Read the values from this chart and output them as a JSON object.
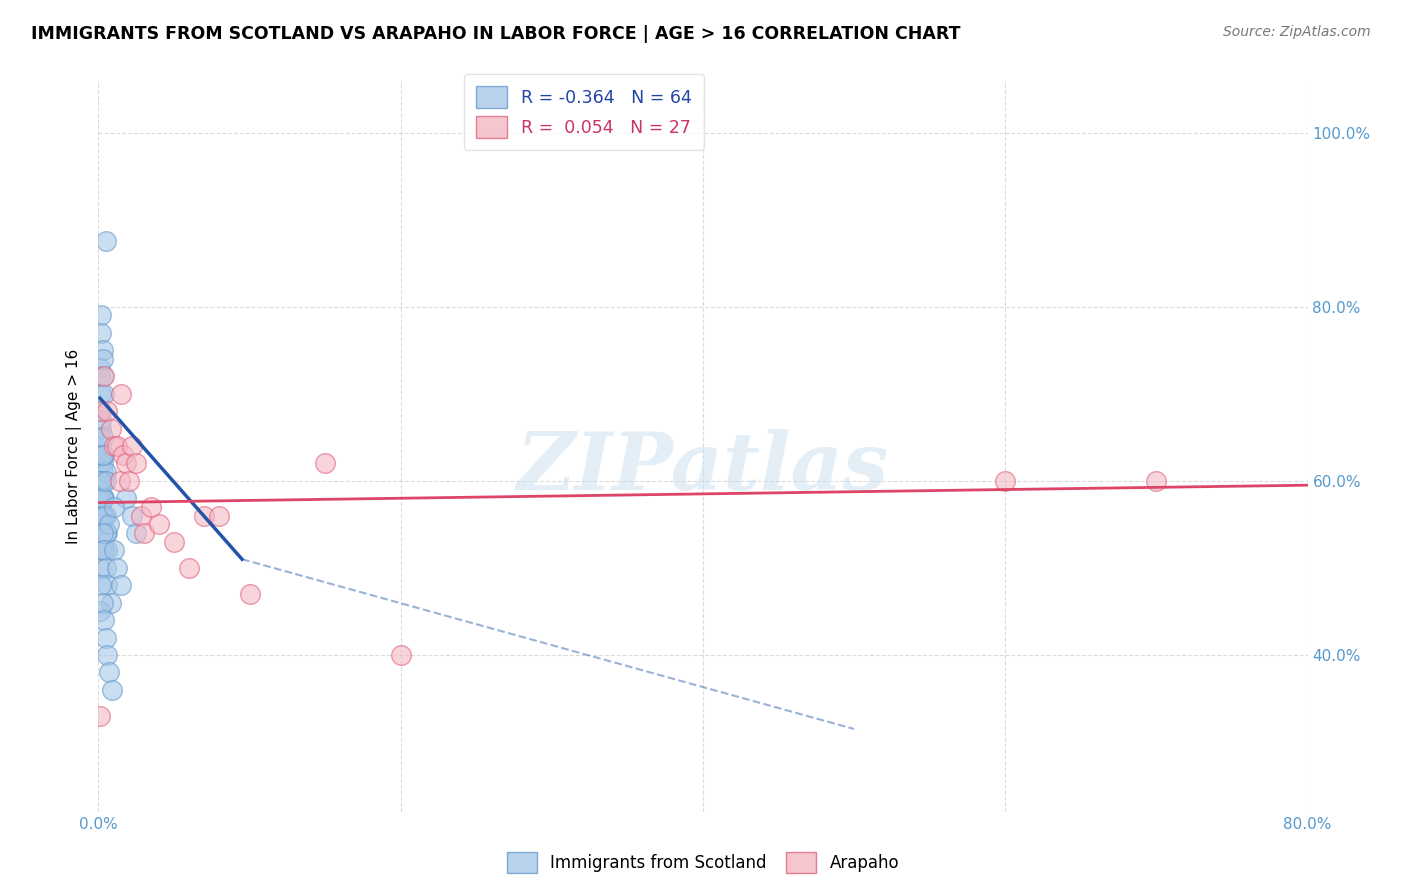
{
  "title": "IMMIGRANTS FROM SCOTLAND VS ARAPAHO IN LABOR FORCE | AGE > 16 CORRELATION CHART",
  "source": "Source: ZipAtlas.com",
  "ylabel": "In Labor Force | Age > 16",
  "xlim": [
    0.0,
    0.8
  ],
  "ylim": [
    0.22,
    1.06
  ],
  "xticks": [
    0.0,
    0.2,
    0.4,
    0.6,
    0.8
  ],
  "xticklabels": [
    "0.0%",
    "",
    "",
    "",
    "80.0%"
  ],
  "yticks": [
    0.4,
    0.6,
    0.8,
    1.0
  ],
  "ytick_right_labels": [
    "40.0%",
    "60.0%",
    "80.0%",
    "100.0%"
  ],
  "grid_color": "#cccccc",
  "background_color": "#ffffff",
  "watermark_text": "ZIPatlas",
  "scatter_blue": {
    "x": [
      0.005,
      0.002,
      0.002,
      0.003,
      0.001,
      0.001,
      0.002,
      0.003,
      0.003,
      0.004,
      0.001,
      0.002,
      0.002,
      0.003,
      0.004,
      0.001,
      0.001,
      0.002,
      0.002,
      0.003,
      0.003,
      0.004,
      0.005,
      0.001,
      0.002,
      0.002,
      0.003,
      0.003,
      0.004,
      0.005,
      0.006,
      0.001,
      0.001,
      0.002,
      0.002,
      0.003,
      0.004,
      0.005,
      0.006,
      0.007,
      0.001,
      0.002,
      0.003,
      0.004,
      0.005,
      0.006,
      0.008,
      0.001,
      0.002,
      0.003,
      0.004,
      0.005,
      0.006,
      0.007,
      0.009,
      0.01,
      0.012,
      0.015,
      0.018,
      0.022,
      0.005,
      0.003,
      0.01,
      0.025
    ],
    "y": [
      0.875,
      0.79,
      0.77,
      0.75,
      0.73,
      0.72,
      0.7,
      0.72,
      0.74,
      0.7,
      0.68,
      0.66,
      0.64,
      0.62,
      0.6,
      0.62,
      0.65,
      0.67,
      0.63,
      0.61,
      0.65,
      0.63,
      0.61,
      0.59,
      0.57,
      0.6,
      0.58,
      0.56,
      0.58,
      0.56,
      0.54,
      0.55,
      0.58,
      0.56,
      0.6,
      0.58,
      0.56,
      0.54,
      0.52,
      0.55,
      0.5,
      0.52,
      0.54,
      0.52,
      0.5,
      0.48,
      0.46,
      0.45,
      0.48,
      0.46,
      0.44,
      0.42,
      0.4,
      0.38,
      0.36,
      0.52,
      0.5,
      0.48,
      0.58,
      0.56,
      0.6,
      0.63,
      0.57,
      0.54
    ]
  },
  "scatter_pink": {
    "x": [
      0.001,
      0.002,
      0.004,
      0.006,
      0.008,
      0.01,
      0.012,
      0.014,
      0.015,
      0.016,
      0.018,
      0.02,
      0.022,
      0.025,
      0.028,
      0.03,
      0.035,
      0.04,
      0.05,
      0.06,
      0.07,
      0.08,
      0.1,
      0.15,
      0.2,
      0.6,
      0.7
    ],
    "y": [
      0.33,
      0.68,
      0.72,
      0.68,
      0.66,
      0.64,
      0.64,
      0.6,
      0.7,
      0.63,
      0.62,
      0.6,
      0.64,
      0.62,
      0.56,
      0.54,
      0.57,
      0.55,
      0.53,
      0.5,
      0.56,
      0.56,
      0.47,
      0.62,
      0.4,
      0.6,
      0.6
    ]
  },
  "blue_line_solid": {
    "x": [
      0.001,
      0.095
    ],
    "y": [
      0.695,
      0.51
    ]
  },
  "blue_line_dashed": {
    "x": [
      0.095,
      0.5
    ],
    "y": [
      0.51,
      0.315
    ]
  },
  "pink_line": {
    "x": [
      0.0,
      0.8
    ],
    "y": [
      0.575,
      0.595
    ]
  },
  "scatter_blue_color": "#a8c8e8",
  "scatter_blue_edge": "#6699cc",
  "scatter_pink_color": "#f4b8c4",
  "scatter_pink_edge": "#e06080",
  "line_blue_color": "#2255aa",
  "line_pink_color": "#dd4466",
  "legend_blue_text_color": "#2244aa",
  "legend_pink_text_color": "#cc3366"
}
